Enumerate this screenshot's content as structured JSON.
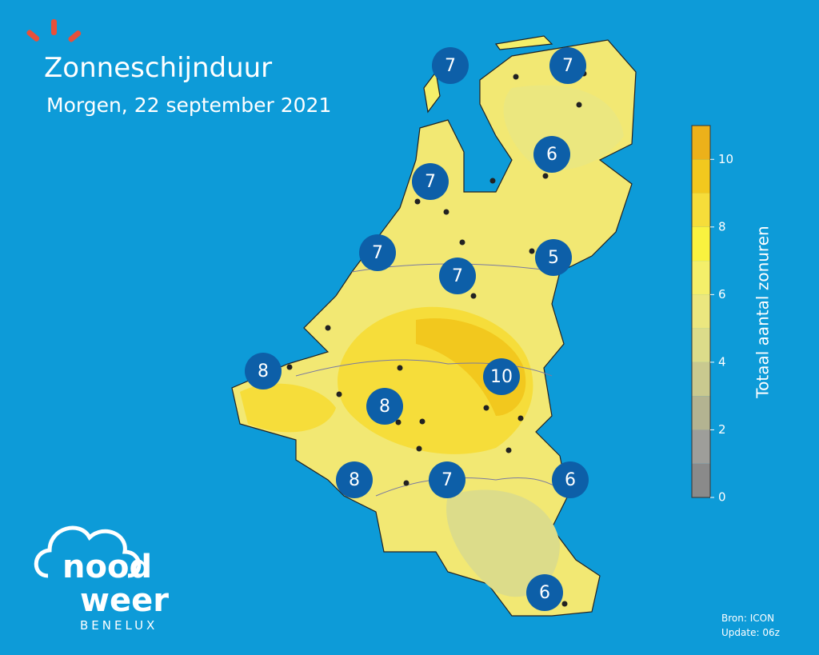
{
  "header": {
    "title": "Zonneschijnduur",
    "subtitle": "Morgen, 22 september 2021"
  },
  "markers": [
    7,
    7,
    6,
    7,
    7,
    5,
    7,
    8,
    10,
    8,
    8,
    7,
    6,
    6
  ],
  "colorbar": {
    "label": "Totaal aantal zonuren",
    "lim": [
      0,
      11
    ],
    "ticks": [
      0,
      2,
      4,
      6,
      8,
      10
    ],
    "colors": [
      "#8a8a8a",
      "#9e9e9a",
      "#b3b391",
      "#c9c98f",
      "#dcdc8a",
      "#ebe77f",
      "#f4ef6a",
      "#f9f23f",
      "#f6dd3a",
      "#f2c81e",
      "#ecb11a"
    ]
  },
  "source": {
    "line1": "Bron: ICON",
    "line2": "Update: 06z"
  },
  "logo": {
    "word1": "nood",
    "word2": "weer",
    "tagline": "BENELUX"
  }
}
